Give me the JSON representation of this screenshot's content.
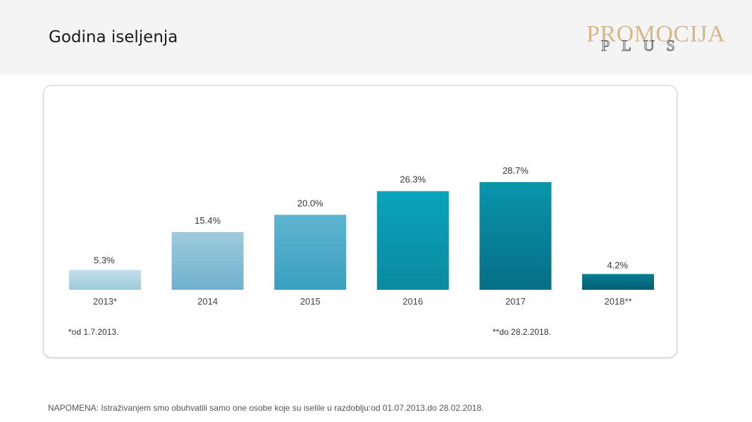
{
  "header": {
    "title": "Godina iseljenja"
  },
  "logo": {
    "main": "PROMOCIJA",
    "sub": "PLUS",
    "color": "#d6b98a"
  },
  "chart_data": {
    "type": "bar",
    "categories": [
      "2013*",
      "2014",
      "2015",
      "2016",
      "2017",
      "2018**"
    ],
    "values": [
      5.3,
      15.4,
      20.0,
      26.3,
      28.7,
      4.2
    ],
    "labels": [
      "5.3%",
      "15.4%",
      "20.0%",
      "26.3%",
      "28.7%",
      "4.2%"
    ],
    "ylim": [
      0,
      30
    ],
    "title": "",
    "xlabel": "",
    "ylabel": "",
    "grid": false,
    "colors": [
      [
        "#c4dfe9",
        "#9ecbdc"
      ],
      [
        "#9ecbdc",
        "#6eb0cc"
      ],
      [
        "#5fb4d0",
        "#3a9fbf"
      ],
      [
        "#0aa3bd",
        "#0b8aa0"
      ],
      [
        "#0995ad",
        "#066f86"
      ],
      [
        "#087d92",
        "#045e74"
      ]
    ]
  },
  "notes": {
    "start": "*od 1.7.2013.",
    "end": "**do 28.2.2018."
  },
  "footnote": "NAPOMENA: Istraživanjem smo obuhvatili samo one osobe koje su iselile u razdoblju:od 01.07.2013.do 28.02.2018."
}
